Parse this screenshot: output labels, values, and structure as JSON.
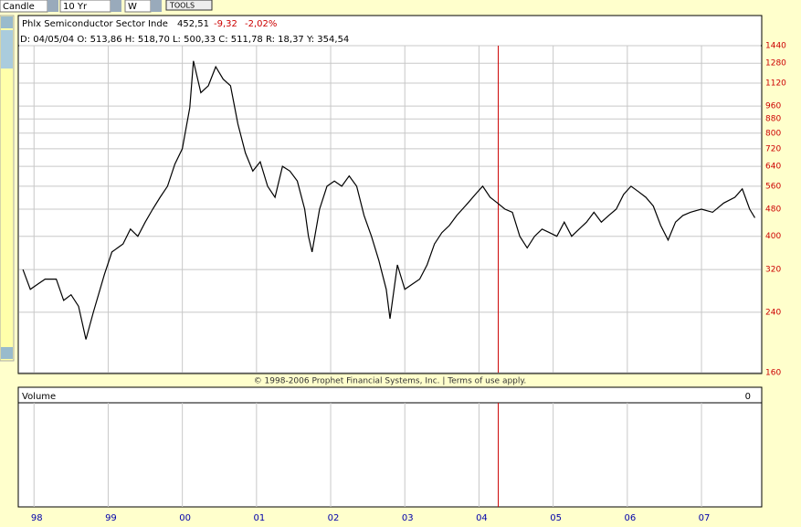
{
  "toolbar": {
    "chart_style": "Candle",
    "period": "10 Yr",
    "interval": "W",
    "tools": "TOOLS"
  },
  "chart_data": {
    "type": "line",
    "title": "Phlx Semiconductor Sector Inde",
    "last": "452,51",
    "change": "-9,32",
    "change_pct": "-2,02%",
    "info": "D: 04/05/04 O: 513,86 H: 518,70 L: 500,33 C: 511,78 R: 18,37 Y: 354,54",
    "x": [
      1997.85,
      1997.95,
      1998.05,
      1998.15,
      1998.3,
      1998.4,
      1998.5,
      1998.6,
      1998.7,
      1998.8,
      1998.95,
      1999.05,
      1999.2,
      1999.3,
      1999.4,
      1999.5,
      1999.6,
      1999.7,
      1999.8,
      1999.9,
      2000.0,
      2000.1,
      2000.15,
      2000.25,
      2000.35,
      2000.45,
      2000.55,
      2000.65,
      2000.75,
      2000.85,
      2000.95,
      2001.05,
      2001.15,
      2001.25,
      2001.35,
      2001.45,
      2001.55,
      2001.65,
      2001.7,
      2001.75,
      2001.85,
      2001.95,
      2002.05,
      2002.15,
      2002.25,
      2002.35,
      2002.45,
      2002.55,
      2002.65,
      2002.75,
      2002.8,
      2002.9,
      2003.0,
      2003.1,
      2003.2,
      2003.3,
      2003.4,
      2003.5,
      2003.6,
      2003.7,
      2003.85,
      2003.95,
      2004.05,
      2004.15,
      2004.25,
      2004.35,
      2004.45,
      2004.55,
      2004.65,
      2004.75,
      2004.85,
      2004.95,
      2005.05,
      2005.15,
      2005.25,
      2005.35,
      2005.45,
      2005.55,
      2005.65,
      2005.75,
      2005.85,
      2005.95,
      2006.05,
      2006.15,
      2006.25,
      2006.35,
      2006.45,
      2006.55,
      2006.65,
      2006.75,
      2006.85,
      2007.0,
      2007.15,
      2007.3,
      2007.45,
      2007.55,
      2007.65,
      2007.72
    ],
    "values": [
      320,
      280,
      290,
      300,
      300,
      260,
      270,
      250,
      200,
      240,
      310,
      360,
      380,
      420,
      400,
      440,
      480,
      520,
      560,
      650,
      720,
      950,
      1300,
      1050,
      1100,
      1250,
      1150,
      1100,
      850,
      700,
      620,
      660,
      560,
      520,
      640,
      620,
      580,
      480,
      400,
      360,
      480,
      560,
      580,
      560,
      600,
      560,
      460,
      400,
      340,
      280,
      230,
      330,
      280,
      290,
      300,
      330,
      380,
      410,
      430,
      460,
      500,
      530,
      560,
      520,
      500,
      480,
      470,
      400,
      370,
      400,
      420,
      410,
      400,
      440,
      400,
      420,
      440,
      470,
      440,
      460,
      480,
      530,
      560,
      540,
      520,
      490,
      430,
      390,
      440,
      460,
      470,
      480,
      470,
      500,
      520,
      550,
      480,
      453
    ],
    "color": "#000000",
    "log_scale": true,
    "grid": true,
    "xlim": [
      1997.8,
      2007.8
    ],
    "xticks": [
      {
        "value": 1998,
        "label": "98"
      },
      {
        "value": 1999,
        "label": "99"
      },
      {
        "value": 2000,
        "label": "00"
      },
      {
        "value": 2001,
        "label": "01"
      },
      {
        "value": 2002,
        "label": "02"
      },
      {
        "value": 2003,
        "label": "03"
      },
      {
        "value": 2004,
        "label": "04"
      },
      {
        "value": 2005,
        "label": "05"
      },
      {
        "value": 2006,
        "label": "06"
      },
      {
        "value": 2007,
        "label": "07"
      }
    ],
    "ylim": [
      160,
      1440
    ],
    "yticks": [
      160,
      240,
      320,
      400,
      480,
      560,
      640,
      720,
      800,
      880,
      960,
      1120,
      1280,
      1440
    ],
    "marker_x": 2004.26,
    "marker_color": "#cc0000",
    "copyright": "© 1998-2006 Prophet Financial Systems, Inc. | Terms of use apply.",
    "volume_label": "Volume",
    "volume_value": 0
  }
}
